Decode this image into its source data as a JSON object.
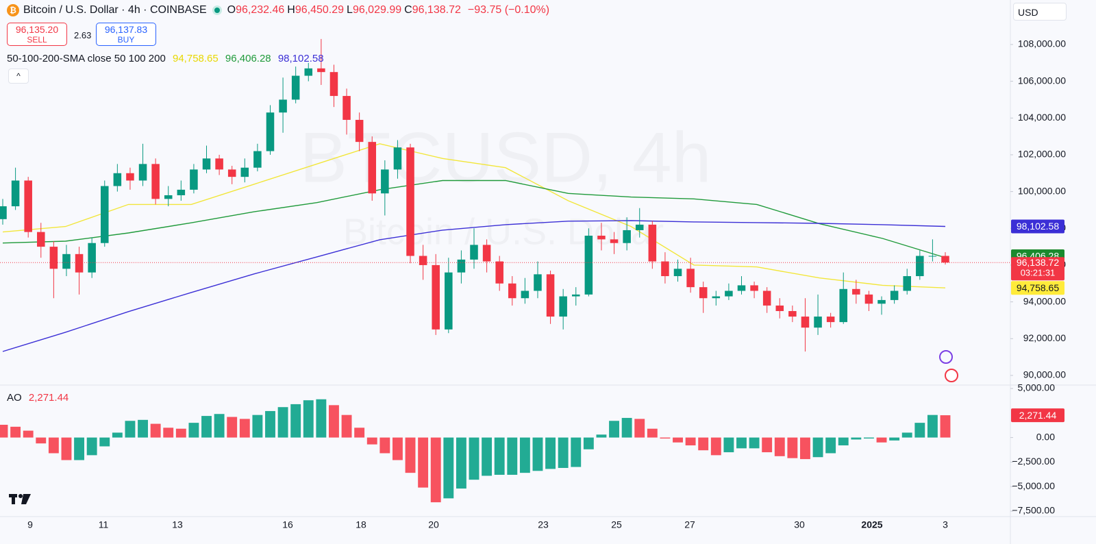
{
  "header": {
    "symbol": "Bitcoin / U.S. Dollar · 4h · COINBASE",
    "ohlc": [
      {
        "label": "O",
        "value": "96,232.46"
      },
      {
        "label": "H",
        "value": "96,450.29"
      },
      {
        "label": "L",
        "value": "96,029.99"
      },
      {
        "label": "C",
        "value": "96,138.72"
      }
    ],
    "change": "−93.75 (−0.10%)",
    "sell_price": "96,135.20",
    "sell": "SELL",
    "spread": "2.63",
    "buy_price": "96,137.83",
    "buy": "BUY",
    "currency": "USD"
  },
  "chart_data": [
    {
      "type": "candlestick",
      "watermark": "BTCUSD, 4h",
      "watermark_sub": "Bitcoin / U.S. Dollar",
      "indicator": "50-100-200-SMA close 50 100 200",
      "up_color": "#089981",
      "down_color": "#f23645",
      "open": [
        98500,
        99200,
        100600,
        97800,
        97000,
        95800,
        96600,
        95600,
        97200,
        100300,
        101000,
        100600,
        101500,
        99600,
        99800,
        100100,
        101200,
        101800,
        101200,
        100800,
        101300,
        102200,
        104300,
        105000,
        106300,
        106700,
        106500,
        105200,
        103900,
        102700,
        99900,
        101200,
        102400,
        96500,
        96000,
        92500,
        95600,
        96300,
        97100,
        96200,
        95000,
        94200,
        94600,
        95500,
        93200,
        94300,
        94400,
        97600,
        97400,
        97200,
        97900,
        98200,
        96200,
        95400,
        95800,
        94800,
        94200,
        94300,
        94600,
        94900,
        94600,
        93800,
        93500,
        93200,
        92600,
        93200,
        92900,
        94700,
        94400,
        93900,
        94100,
        94600,
        95400,
        96500,
        96500
      ],
      "high": [
        99600,
        101300,
        100800,
        98300,
        97300,
        97100,
        97000,
        97500,
        100600,
        101500,
        101300,
        102600,
        101800,
        100300,
        100600,
        101500,
        102500,
        102000,
        101400,
        101800,
        102600,
        104700,
        106200,
        106800,
        107000,
        108300,
        106900,
        105600,
        104300,
        103000,
        101700,
        102800,
        102600,
        97100,
        96600,
        96400,
        96800,
        98000,
        97400,
        96500,
        95400,
        95300,
        96200,
        95700,
        94700,
        94800,
        98000,
        98300,
        97800,
        98600,
        99100,
        98400,
        96700,
        96300,
        96400,
        95100,
        94600,
        95000,
        95400,
        95100,
        94800,
        94200,
        93800,
        94200,
        94400,
        93400,
        95600,
        95200,
        94600,
        94300,
        94900,
        95800,
        96800,
        97400,
        96700
      ],
      "low": [
        98200,
        99000,
        97500,
        96400,
        94200,
        95400,
        94400,
        95300,
        97000,
        100000,
        100100,
        100300,
        99300,
        99200,
        99500,
        99900,
        101000,
        100900,
        100400,
        100500,
        101100,
        102000,
        103200,
        104800,
        106000,
        105800,
        104600,
        103100,
        102200,
        99500,
        98700,
        100700,
        96100,
        95200,
        92200,
        92300,
        95000,
        95800,
        95600,
        94600,
        93800,
        93900,
        94200,
        92800,
        92500,
        93800,
        94300,
        96800,
        96600,
        96800,
        97500,
        95800,
        95000,
        95100,
        94500,
        93400,
        93800,
        94100,
        94400,
        94200,
        93400,
        93100,
        92900,
        91300,
        92200,
        92600,
        92800,
        93900,
        93500,
        93300,
        93900,
        94400,
        95200,
        96200,
        96029.99
      ],
      "close": [
        99200,
        100600,
        97800,
        97000,
        95800,
        96600,
        95600,
        97200,
        100300,
        101000,
        100600,
        101500,
        99600,
        99800,
        100100,
        101200,
        101800,
        101200,
        100800,
        101300,
        102200,
        104300,
        105000,
        106300,
        106700,
        106500,
        105200,
        103900,
        102700,
        99900,
        101200,
        102400,
        96500,
        96000,
        92500,
        95600,
        96300,
        97100,
        96200,
        95000,
        94200,
        94600,
        95500,
        93200,
        94300,
        94400,
        97600,
        97400,
        97200,
        97900,
        98200,
        96200,
        95400,
        95800,
        94800,
        94200,
        94300,
        94600,
        94900,
        94600,
        93800,
        93500,
        93200,
        92600,
        93200,
        92900,
        94700,
        94400,
        93900,
        94100,
        94600,
        95400,
        96500,
        96500,
        96138.72
      ],
      "last_close_label": "96,138.72",
      "countdown": "03:21:31",
      "series": [
        {
          "color": "#f2e63a",
          "values": [
            97800,
            98100,
            99300,
            99300,
            100400,
            101500,
            102600,
            101800,
            101300,
            99500,
            98100,
            96000,
            95900,
            95300,
            94900,
            94758.65
          ],
          "last_value_label": "94,758.65"
        },
        {
          "color": "#1f9a3a",
          "values": [
            97200,
            97300,
            97750,
            98300,
            98900,
            99400,
            100100,
            100600,
            100600,
            99900,
            99700,
            99600,
            99300,
            98250,
            97450,
            96406.28
          ],
          "last_value_label": "96,406.28"
        },
        {
          "color": "#3b2fd6",
          "values": [
            91300,
            92350,
            93470,
            94510,
            95520,
            96450,
            97380,
            97900,
            98200,
            98390,
            98420,
            98350,
            98310,
            98270,
            98200,
            98102.58
          ],
          "last_value_label": "98,102.58"
        }
      ],
      "ylim": [
        89550,
        110420
      ],
      "yticks": [
        {
          "value": 90000,
          "label": "90,000.00"
        },
        {
          "value": 92000,
          "label": "92,000.00"
        },
        {
          "value": 94000,
          "label": "94,000.00"
        },
        {
          "value": 96000,
          "label": "96,000.00"
        },
        {
          "value": 98000,
          "label": "98,000.00"
        },
        {
          "value": 100000,
          "label": "100,000.00"
        },
        {
          "value": 102000,
          "label": "102,000.00"
        },
        {
          "value": 104000,
          "label": "104,000.00"
        },
        {
          "value": 106000,
          "label": "106,000.00"
        },
        {
          "value": 108000,
          "label": "108,000.00"
        }
      ],
      "xtick_labels": [
        "9",
        "11",
        "13",
        "16",
        "18",
        "20",
        "23",
        "25",
        "27",
        "30",
        "2025",
        "3"
      ]
    },
    {
      "type": "bar",
      "title": "AO",
      "up_color": "#22ab94",
      "down_color": "#f7525f",
      "values": [
        1300,
        1100,
        700,
        -600,
        -1600,
        -2300,
        -2300,
        -1800,
        -900,
        500,
        1700,
        1800,
        1400,
        1000,
        900,
        1500,
        2200,
        2400,
        2100,
        1900,
        2300,
        2700,
        3100,
        3400,
        3800,
        3900,
        3300,
        2300,
        1000,
        -700,
        -1600,
        -2300,
        -3600,
        -5100,
        -6600,
        -6200,
        -5200,
        -4300,
        -3900,
        -3800,
        -3800,
        -3600,
        -3400,
        -3200,
        -3100,
        -3000,
        -1200,
        300,
        1700,
        2000,
        1900,
        900,
        -100,
        -500,
        -800,
        -1300,
        -1800,
        -1500,
        -1100,
        -1100,
        -1500,
        -1900,
        -2100,
        -2200,
        -2000,
        -1600,
        -800,
        -200,
        -100,
        -500,
        -300,
        500,
        1500,
        2300,
        2271.44
      ],
      "last_value_label": "2,271.44",
      "ylim": [
        -7920,
        5280
      ],
      "yticks": [
        {
          "value": 5000,
          "label": "5,000.00"
        },
        {
          "value": 0,
          "label": "0.00"
        },
        {
          "value": -2500,
          "label": "−2,500.00"
        },
        {
          "value": -5000,
          "label": "−5,000.00"
        },
        {
          "value": -7500,
          "label": "−7,500.00"
        }
      ]
    }
  ]
}
